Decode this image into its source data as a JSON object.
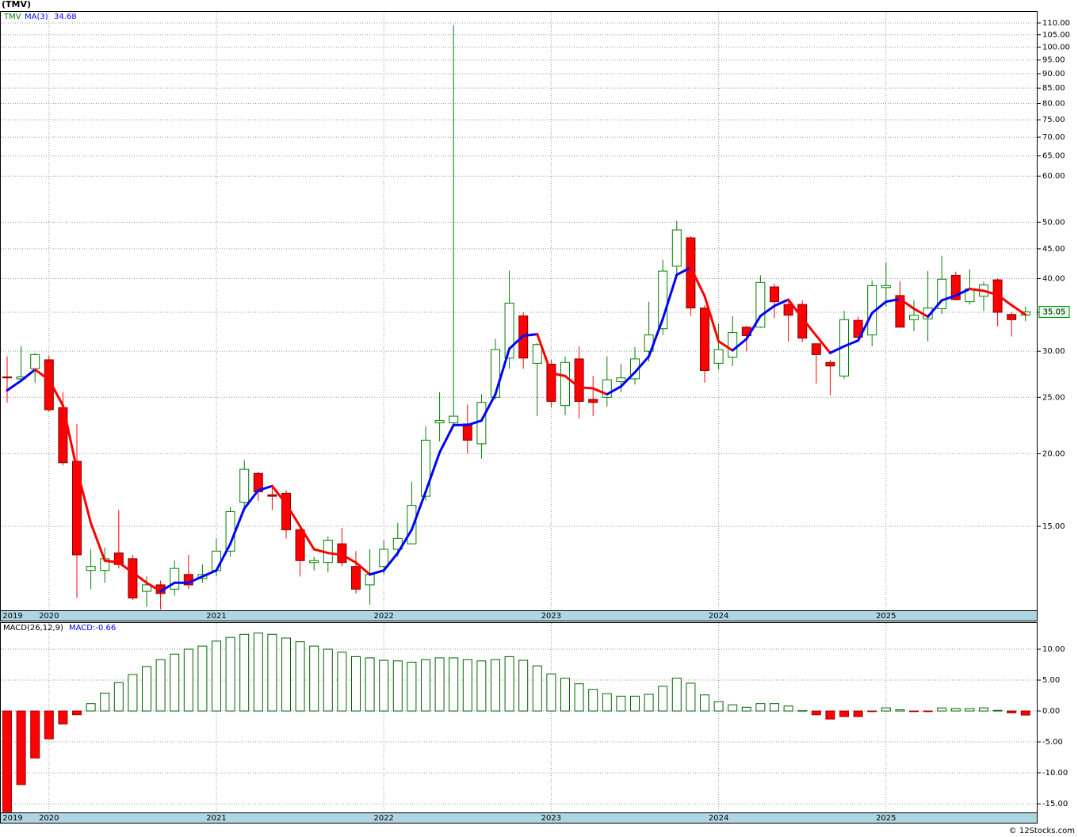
{
  "source": "© 12Stocks.com",
  "chart_data": [
    {
      "type": "candlestick",
      "title": "(TMV)",
      "log_scale": true,
      "grid": true,
      "categories": [
        "2019",
        null,
        null,
        "2020",
        null,
        null,
        null,
        null,
        null,
        null,
        null,
        null,
        null,
        null,
        null,
        "2021",
        null,
        null,
        null,
        null,
        null,
        null,
        null,
        null,
        null,
        null,
        null,
        "2022",
        null,
        null,
        null,
        null,
        null,
        null,
        null,
        null,
        null,
        null,
        null,
        "2023",
        null,
        null,
        null,
        null,
        null,
        null,
        null,
        null,
        null,
        null,
        null,
        "2024",
        null,
        null,
        null,
        null,
        null,
        null,
        null,
        null,
        null,
        null,
        null,
        "2025",
        null,
        null,
        null,
        null,
        null,
        null,
        null,
        null,
        null,
        null
      ],
      "ylim": [
        10.76,
        115.3
      ],
      "yticks": [
        {
          "value": 15,
          "label": "15.00"
        },
        {
          "value": 20,
          "label": "20.00"
        },
        {
          "value": 25,
          "label": "25.00"
        },
        {
          "value": 30,
          "label": "30.00"
        },
        {
          "value": 35,
          "label": "35.00"
        },
        {
          "value": 40,
          "label": "40.00"
        },
        {
          "value": 45,
          "label": "45.00"
        },
        {
          "value": 50,
          "label": "50.00"
        },
        {
          "value": 60,
          "label": "60.00"
        },
        {
          "value": 65,
          "label": "65.00"
        },
        {
          "value": 70,
          "label": "70.00"
        },
        {
          "value": 75,
          "label": "75.00"
        },
        {
          "value": 80,
          "label": "80.00"
        },
        {
          "value": 85,
          "label": "85.00"
        },
        {
          "value": 90,
          "label": "90.00"
        },
        {
          "value": 95,
          "label": "95.00"
        },
        {
          "value": 100,
          "label": "100.00"
        },
        {
          "value": 105,
          "label": "105.00"
        },
        {
          "value": 110,
          "label": "110.00"
        }
      ],
      "series": [
        {
          "name": "TMV",
          "color": "#008000",
          "up_color": "#ffffff",
          "down_color": "#ff0000",
          "last_label": "35.05",
          "open": [
            27.1,
            26.9,
            28.0,
            29.0,
            24.0,
            19.4,
            12.6,
            12.6,
            13.5,
            13.2,
            11.6,
            11.9,
            11.7,
            12.4,
            12.2,
            12.6,
            13.6,
            16.5,
            18.5,
            17.0,
            17.1,
            14.8,
            13.0,
            13.0,
            14.0,
            12.8,
            11.9,
            12.8,
            13.7,
            14.0,
            16.9,
            22.6,
            22.6,
            22.5,
            20.8,
            25.0,
            29.2,
            34.5,
            28.6,
            28.5,
            24.2,
            29.1,
            24.8,
            25.0,
            26.6,
            26.9,
            30.0,
            32.8,
            42.0,
            47.0,
            35.6,
            28.6,
            29.3,
            33.0,
            33.0,
            38.7,
            36.1,
            36.1,
            30.9,
            28.7,
            27.2,
            33.9,
            32.0,
            38.6,
            37.4,
            34.0,
            34.1,
            35.5,
            40.5,
            36.5,
            37.3,
            39.8,
            34.7,
            34.6
          ],
          "high": [
            29.4,
            30.6,
            29.8,
            29.5,
            25.5,
            22.5,
            13.7,
            13.8,
            16.0,
            13.4,
            12.3,
            12.1,
            13.1,
            13.4,
            12.9,
            14.3,
            16.2,
            19.5,
            18.6,
            17.5,
            17.3,
            15.0,
            13.3,
            14.4,
            14.9,
            13.6,
            13.7,
            14.2,
            15.2,
            17.9,
            22.3,
            25.5,
            109.0,
            24.3,
            25.3,
            31.5,
            41.3,
            35.0,
            31.0,
            29.0,
            29.4,
            30.6,
            27.2,
            29.4,
            28.5,
            30.5,
            36.5,
            43.1,
            50.3,
            47.3,
            36.0,
            33.5,
            34.5,
            33.2,
            40.5,
            39.2,
            36.7,
            36.7,
            30.9,
            29.0,
            35.2,
            34.4,
            39.7,
            42.6,
            39.6,
            36.7,
            41.2,
            43.8,
            41.1,
            41.5,
            39.5,
            40.0,
            35.0,
            35.8
          ],
          "low": [
            24.5,
            26.8,
            26.5,
            23.6,
            19.1,
            11.3,
            11.7,
            12.0,
            12.7,
            11.2,
            10.9,
            10.8,
            11.4,
            11.7,
            12.0,
            12.3,
            13.3,
            16.0,
            16.6,
            16.0,
            14.3,
            12.3,
            12.6,
            12.5,
            12.8,
            11.5,
            11.0,
            12.4,
            13.3,
            14.0,
            16.6,
            21.0,
            22.4,
            20.0,
            19.6,
            24.8,
            28.0,
            28.0,
            23.2,
            24.0,
            23.3,
            23.0,
            23.2,
            24.1,
            25.5,
            26.3,
            28.8,
            32.0,
            40.5,
            34.5,
            26.5,
            27.9,
            28.3,
            30.0,
            32.9,
            34.2,
            31.2,
            31.1,
            26.4,
            25.2,
            26.9,
            31.5,
            30.6,
            35.8,
            33.0,
            32.5,
            31.2,
            34.8,
            36.7,
            36.1,
            35.2,
            33.1,
            31.8,
            33.8
          ],
          "close": [
            27.0,
            27.1,
            29.6,
            23.8,
            19.3,
            13.4,
            12.8,
            13.2,
            12.9,
            11.3,
            11.9,
            11.5,
            12.7,
            11.9,
            12.4,
            13.6,
            15.9,
            18.8,
            17.2,
            16.9,
            14.8,
            13.1,
            13.1,
            14.2,
            13.0,
            11.7,
            12.4,
            13.7,
            14.3,
            16.3,
            21.1,
            22.8,
            23.2,
            21.1,
            24.5,
            30.2,
            36.3,
            29.2,
            30.8,
            24.6,
            28.7,
            24.6,
            24.5,
            26.8,
            27.0,
            29.1,
            32.0,
            41.2,
            48.5,
            35.6,
            27.8,
            30.2,
            32.3,
            31.9,
            39.4,
            36.5,
            34.6,
            31.6,
            29.6,
            28.3,
            34.0,
            31.7,
            38.9,
            38.9,
            33.0,
            34.6,
            35.6,
            39.9,
            36.8,
            38.4,
            39.0,
            35.0,
            34.0,
            35.05
          ]
        },
        {
          "name": "MA(3)",
          "color": "#0000ff",
          "down_color": "#ff0000",
          "last_label": "34.68",
          "values": [
            25.7,
            26.7,
            27.9,
            26.8,
            24.2,
            18.8,
            15.2,
            13.1,
            13.0,
            12.5,
            12.0,
            11.6,
            12.0,
            12.0,
            12.3,
            12.6,
            14.0,
            16.1,
            17.3,
            17.6,
            16.4,
            15.0,
            13.7,
            13.5,
            13.4,
            13.0,
            12.4,
            12.6,
            13.5,
            14.8,
            17.2,
            20.1,
            22.4,
            22.4,
            22.8,
            25.3,
            30.3,
            31.9,
            32.1,
            27.5,
            27.2,
            26.0,
            25.9,
            25.3,
            26.1,
            27.6,
            29.4,
            34.1,
            40.6,
            41.8,
            37.3,
            31.2,
            30.1,
            31.5,
            34.5,
            35.9,
            36.8,
            34.2,
            31.9,
            29.8,
            30.6,
            31.3,
            34.9,
            36.5,
            36.9,
            35.5,
            34.4,
            36.7,
            37.4,
            38.4,
            38.1,
            37.5,
            36.0,
            34.68
          ]
        }
      ]
    },
    {
      "type": "bar",
      "grid": true,
      "ylim": [
        -16.4,
        14.36
      ],
      "yticks": [
        {
          "value": -15,
          "label": "-15.00"
        },
        {
          "value": -10,
          "label": "-10.00"
        },
        {
          "value": -5,
          "label": "-5.00"
        },
        {
          "value": 0,
          "label": "0.00"
        },
        {
          "value": 5,
          "label": "5.00"
        },
        {
          "value": 10,
          "label": "10.00"
        }
      ],
      "series": [
        {
          "name": "MACD(26,12,9)",
          "color": "#006400",
          "down_color": "#ff0000",
          "last_label": "MACD:-0.66",
          "values": [
            -16.3,
            -11.9,
            -7.6,
            -4.5,
            -2.1,
            -0.6,
            1.2,
            2.9,
            4.6,
            5.9,
            7.2,
            8.3,
            9.2,
            10.0,
            10.5,
            11.3,
            11.9,
            12.4,
            12.6,
            12.4,
            11.8,
            11.2,
            10.5,
            10.0,
            9.5,
            8.8,
            8.6,
            8.2,
            8.1,
            7.9,
            8.3,
            8.6,
            8.6,
            8.3,
            8.1,
            8.3,
            8.8,
            8.2,
            7.3,
            6.0,
            5.3,
            4.4,
            3.5,
            2.8,
            2.4,
            2.4,
            2.7,
            4.0,
            5.3,
            4.5,
            2.6,
            1.5,
            1.0,
            0.6,
            1.2,
            1.2,
            0.8,
            0.05,
            -0.6,
            -1.3,
            -0.9,
            -0.9,
            -0.1,
            0.5,
            0.2,
            -0.1,
            -0.1,
            0.5,
            0.4,
            0.4,
            0.5,
            0.1,
            -0.3,
            -0.66
          ]
        }
      ]
    }
  ]
}
